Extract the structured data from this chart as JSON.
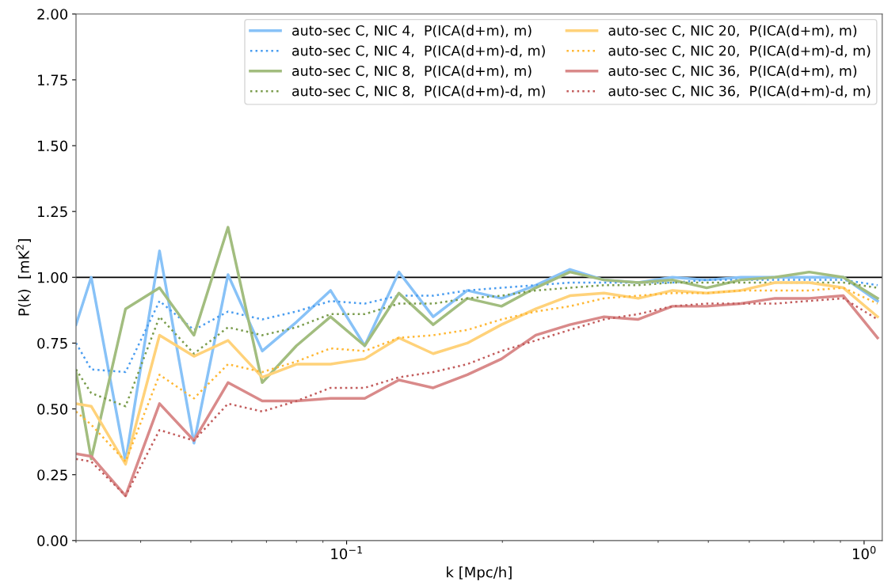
{
  "chart_data": {
    "type": "line",
    "xlabel": "k [Mpc/h]",
    "ylabel": "P(k)  [mK$^{2}$]",
    "log": "x",
    "x": [
      0.03,
      0.0321,
      0.0374,
      0.0435,
      0.0507,
      0.059,
      0.0687,
      0.08,
      0.0931,
      0.1084,
      0.1262,
      0.147,
      0.1711,
      0.1992,
      0.232,
      0.2701,
      0.3144,
      0.3661,
      0.4262,
      0.4963,
      0.5778,
      0.6727,
      0.7832,
      0.9119,
      1.0617
    ],
    "xlim": [
      0.03,
      1.084
    ],
    "xticks": [
      {
        "value": 0.1,
        "label": "10$^{−1}$"
      },
      {
        "value": 1,
        "label": "10$^{0}$"
      }
    ],
    "ylim": [
      0,
      2
    ],
    "yticks": [
      {
        "value": 0,
        "label": "0.00"
      },
      {
        "value": 0.25,
        "label": "0.25"
      },
      {
        "value": 0.5,
        "label": "0.50"
      },
      {
        "value": 0.75,
        "label": "0.75"
      },
      {
        "value": 1,
        "label": "1.00"
      },
      {
        "value": 1.25,
        "label": "1.25"
      },
      {
        "value": 1.5,
        "label": "1.50"
      },
      {
        "value": 1.75,
        "label": "1.75"
      },
      {
        "value": 2,
        "label": "2.00"
      }
    ],
    "grid": false,
    "legend": "top right",
    "marker": "none",
    "ref_lines": [
      {
        "axis": "y",
        "value": 1,
        "color": "#000000",
        "line_style": "solid"
      }
    ],
    "series": [
      {
        "name": "auto-sec C, NIC 4,  P(ICA(d+m), m)",
        "color": "#88c2f7",
        "line_style": "solid",
        "values": [
          0.82,
          1.0,
          0.3,
          1.1,
          0.37,
          1.01,
          0.72,
          0.83,
          0.95,
          0.74,
          1.02,
          0.85,
          0.95,
          0.92,
          0.97,
          1.03,
          0.99,
          0.98,
          1.0,
          0.99,
          1.0,
          1.0,
          1.0,
          1.0,
          0.91
        ]
      },
      {
        "name": "auto-sec C, NIC 4,  P(ICA(d+m)-d, m)",
        "color": "#4a9df0",
        "line_style": "dotted",
        "values": [
          0.75,
          0.65,
          0.64,
          0.91,
          0.8,
          0.87,
          0.84,
          0.87,
          0.91,
          0.9,
          0.93,
          0.93,
          0.95,
          0.96,
          0.97,
          0.98,
          0.98,
          0.98,
          0.98,
          0.99,
          0.99,
          0.99,
          0.99,
          0.99,
          0.97
        ]
      },
      {
        "name": "auto-sec C, NIC 8,  P(ICA(d+m), m)",
        "color": "#a2bd7f",
        "line_style": "solid",
        "values": [
          0.64,
          0.31,
          0.88,
          0.96,
          0.78,
          1.19,
          0.6,
          0.74,
          0.85,
          0.74,
          0.94,
          0.82,
          0.92,
          0.89,
          0.96,
          1.02,
          0.99,
          0.98,
          0.99,
          0.96,
          0.99,
          1.0,
          1.02,
          1.0,
          0.92
        ]
      },
      {
        "name": "auto-sec C, NIC 8,  P(ICA(d+m)-d, m)",
        "color": "#7a9c4c",
        "line_style": "dotted",
        "values": [
          0.65,
          0.56,
          0.51,
          0.85,
          0.71,
          0.81,
          0.78,
          0.81,
          0.86,
          0.86,
          0.9,
          0.9,
          0.92,
          0.93,
          0.95,
          0.96,
          0.97,
          0.97,
          0.98,
          0.98,
          0.98,
          0.98,
          0.98,
          0.98,
          0.96
        ]
      },
      {
        "name": "auto-sec C, NIC 20,  P(ICA(d+m), m)",
        "color": "#ffd27a",
        "line_style": "solid",
        "values": [
          0.52,
          0.51,
          0.29,
          0.78,
          0.7,
          0.76,
          0.62,
          0.67,
          0.67,
          0.69,
          0.77,
          0.71,
          0.75,
          0.82,
          0.88,
          0.93,
          0.94,
          0.92,
          0.95,
          0.94,
          0.95,
          0.98,
          0.98,
          0.96,
          0.85
        ]
      },
      {
        "name": "auto-sec C, NIC 20,  P(ICA(d+m)-d, m)",
        "color": "#ffb733",
        "line_style": "dotted",
        "values": [
          0.49,
          0.44,
          0.3,
          0.63,
          0.54,
          0.67,
          0.64,
          0.68,
          0.73,
          0.72,
          0.77,
          0.78,
          0.8,
          0.84,
          0.87,
          0.89,
          0.92,
          0.93,
          0.94,
          0.94,
          0.95,
          0.95,
          0.95,
          0.96,
          0.9
        ]
      },
      {
        "name": "auto-sec C, NIC 36,  P(ICA(d+m), m)",
        "color": "#d98a8a",
        "line_style": "solid",
        "values": [
          0.33,
          0.32,
          0.17,
          0.52,
          0.38,
          0.6,
          0.53,
          0.53,
          0.54,
          0.54,
          0.61,
          0.58,
          0.63,
          0.69,
          0.78,
          0.82,
          0.85,
          0.84,
          0.89,
          0.89,
          0.9,
          0.92,
          0.92,
          0.93,
          0.77
        ]
      },
      {
        "name": "auto-sec C, NIC 36,  P(ICA(d+m)-d, m)",
        "color": "#c25b5b",
        "line_style": "dotted",
        "values": [
          0.31,
          0.3,
          0.17,
          0.42,
          0.38,
          0.52,
          0.49,
          0.53,
          0.58,
          0.58,
          0.62,
          0.64,
          0.67,
          0.72,
          0.76,
          0.8,
          0.84,
          0.86,
          0.89,
          0.9,
          0.9,
          0.9,
          0.91,
          0.92,
          0.84
        ]
      }
    ]
  }
}
